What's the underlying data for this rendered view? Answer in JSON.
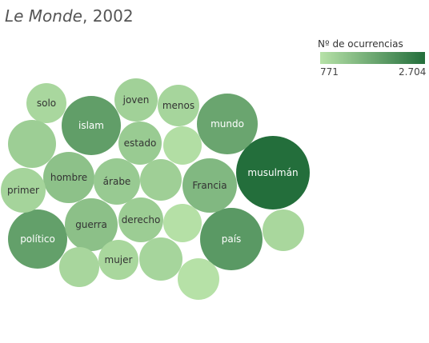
{
  "title_italic": "Le Monde",
  "title_rest": ", 2002",
  "legend": {
    "title": "Nº de ocurrencias",
    "min_label": "771",
    "max_label": "2.704",
    "color_low": "#b7e2a8",
    "color_high": "#236e3b"
  },
  "chart_data": {
    "type": "bubble",
    "title": "Le Monde, 2002",
    "size_color_encoding": "occurrences",
    "range": [
      771,
      2704
    ],
    "points": [
      {
        "label": "musulmán",
        "value": 2704
      },
      {
        "label": "país",
        "value": 1980
      },
      {
        "label": "islam",
        "value": 1900
      },
      {
        "label": "político",
        "value": 1870
      },
      {
        "label": "mundo",
        "value": 1780
      },
      {
        "label": "Francia",
        "value": 1470
      },
      {
        "label": "guerra",
        "value": 1330
      },
      {
        "label": "hombre",
        "value": 1320
      },
      {
        "label": "árabe",
        "value": 1170
      },
      {
        "label": "estado",
        "value": 1160
      },
      {
        "label": "derecho",
        "value": 1120
      },
      {
        "label": "joven",
        "value": 1060
      },
      {
        "label": "primer",
        "value": 1000
      },
      {
        "label": "menos",
        "value": 990
      },
      {
        "label": "mujer",
        "value": 960
      },
      {
        "label": "solo",
        "value": 950
      },
      {
        "label": "",
        "value": 1110
      },
      {
        "label": "",
        "value": 1090
      },
      {
        "label": "",
        "value": 990
      },
      {
        "label": "",
        "value": 970
      },
      {
        "label": "",
        "value": 960
      },
      {
        "label": "",
        "value": 840
      },
      {
        "label": "",
        "value": 800
      },
      {
        "label": "",
        "value": 780
      }
    ]
  }
}
